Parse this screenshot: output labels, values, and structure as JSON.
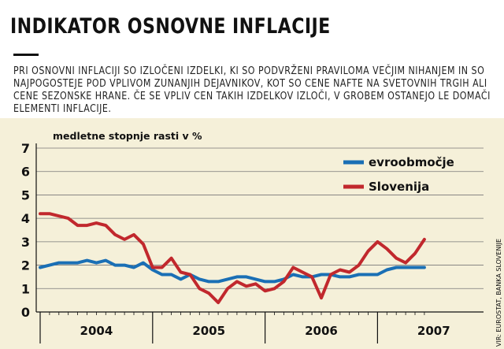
{
  "title": "INDIKATOR OSNOVNE INFLACIJE",
  "description": "PRI OSNOVNI INFLACIJI SO IZLOČENI IZDELKI, KI SO PODVRŽENI PRAVILOMA VEČJIM NIHANJEM IN SO NAJPOGOSTEJE POD VPLIVOM ZUNANJIH DEJAVNIKOV, KOT SO CENE NAFTE NA SVETOVNIH TRGIH ALI CENE SEZONSKE HRANE. ČE SE VPLIV CEN TAKIH IZDELKOV IZLOČI, V GROBEM OSTANEJO LE DOMAČI ELEMENTI INFLACIJE.",
  "source": "VIR: EUROSTAT, BANKA SLOVENIJE",
  "chart_data": {
    "type": "line",
    "title": "",
    "ylabel": "medletne stopnje rasti v %",
    "xlabel": "",
    "ylim": [
      0,
      7
    ],
    "yticks": [
      "0",
      "1",
      "2",
      "3",
      "4",
      "5",
      "6",
      "7"
    ],
    "grid": true,
    "legend": "top-right",
    "x_labels": [
      "2004",
      "2005",
      "2006",
      "2007"
    ],
    "x": [
      "2003-12",
      "2004-01",
      "2004-02",
      "2004-03",
      "2004-04",
      "2004-05",
      "2004-06",
      "2004-07",
      "2004-08",
      "2004-09",
      "2004-10",
      "2004-11",
      "2004-12",
      "2005-01",
      "2005-02",
      "2005-03",
      "2005-04",
      "2005-05",
      "2005-06",
      "2005-07",
      "2005-08",
      "2005-09",
      "2005-10",
      "2005-11",
      "2005-12",
      "2006-01",
      "2006-02",
      "2006-03",
      "2006-04",
      "2006-05",
      "2006-06",
      "2006-07",
      "2006-08",
      "2006-09",
      "2006-10",
      "2006-11",
      "2006-12",
      "2007-01",
      "2007-02",
      "2007-03",
      "2007-04",
      "2007-05"
    ],
    "series": [
      {
        "name": "evroobmočje",
        "color": "#1a6fb5",
        "values": [
          1.9,
          2.0,
          2.1,
          2.1,
          2.1,
          2.2,
          2.1,
          2.2,
          2.0,
          2.0,
          1.9,
          2.1,
          1.8,
          1.6,
          1.6,
          1.4,
          1.6,
          1.4,
          1.3,
          1.3,
          1.4,
          1.5,
          1.5,
          1.4,
          1.3,
          1.3,
          1.4,
          1.6,
          1.5,
          1.5,
          1.6,
          1.6,
          1.5,
          1.5,
          1.6,
          1.6,
          1.6,
          1.8,
          1.9,
          1.9,
          1.9,
          1.9
        ]
      },
      {
        "name": "Slovenija",
        "color": "#c1282d",
        "values": [
          4.2,
          4.2,
          4.1,
          4.0,
          3.7,
          3.7,
          3.8,
          3.7,
          3.3,
          3.1,
          3.3,
          2.9,
          1.9,
          1.9,
          2.3,
          1.7,
          1.6,
          1.0,
          0.8,
          0.4,
          1.0,
          1.3,
          1.1,
          1.2,
          0.9,
          1.0,
          1.3,
          1.9,
          1.7,
          1.5,
          0.6,
          1.6,
          1.8,
          1.7,
          2.0,
          2.6,
          3.0,
          2.7,
          2.3,
          2.1,
          2.5,
          3.1
        ]
      }
    ]
  }
}
